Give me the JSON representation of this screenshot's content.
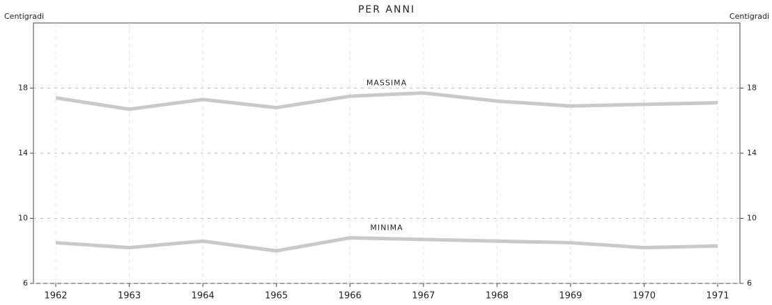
{
  "chart_data": {
    "type": "line",
    "title": "PER ANNI",
    "ylabel": "Centigradi",
    "y2label": "Centigradi",
    "categories": [
      "1962",
      "1963",
      "1964",
      "1965",
      "1966",
      "1967",
      "1968",
      "1969",
      "1970",
      "1971"
    ],
    "series": [
      {
        "name": "MASSIMA",
        "color": "#c9c9c9",
        "values": [
          17.4,
          16.7,
          17.3,
          16.8,
          17.5,
          17.7,
          17.2,
          16.9,
          17.0,
          17.1
        ]
      },
      {
        "name": "MINIMA",
        "color": "#c9c9c9",
        "values": [
          8.5,
          8.2,
          8.6,
          8.0,
          8.8,
          8.7,
          8.6,
          8.5,
          8.2,
          8.3
        ]
      }
    ],
    "ylim": [
      6,
      22
    ],
    "yticks": [
      6,
      10,
      14,
      18
    ],
    "y2lim": [
      6,
      22
    ],
    "y2ticks": [
      6,
      10,
      14,
      18
    ],
    "grid": true
  }
}
